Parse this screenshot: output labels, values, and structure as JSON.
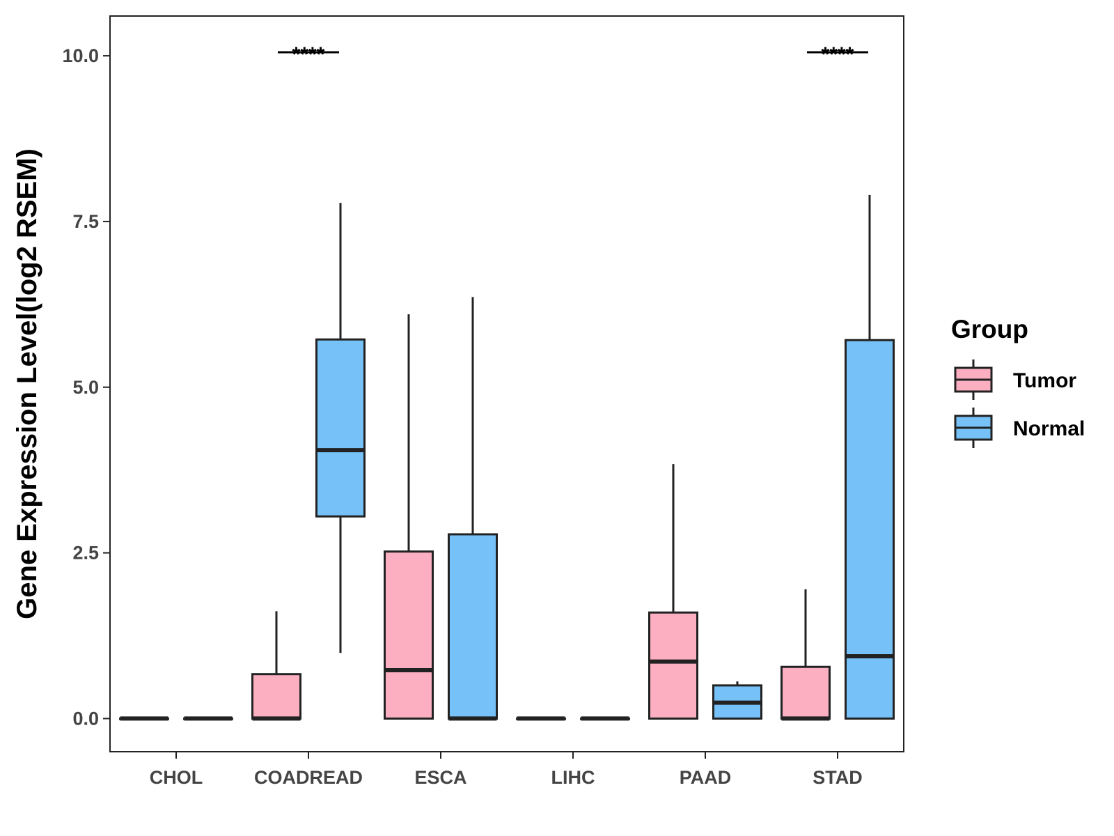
{
  "chart_data": {
    "type": "boxplot",
    "title": "",
    "xlabel": "",
    "ylabel": "Gene Expression Level(log2 RSEM)",
    "ylim": [
      -0.5,
      10.6
    ],
    "yticks": [
      0.0,
      2.5,
      5.0,
      7.5,
      10.0
    ],
    "ytick_labels": [
      "0.0",
      "2.5",
      "5.0",
      "7.5",
      "10.0"
    ],
    "categories": [
      "CHOL",
      "COADREAD",
      "ESCA",
      "LIHC",
      "PAAD",
      "STAD"
    ],
    "legend": {
      "title": "Group",
      "position": "right",
      "entries": [
        {
          "name": "Tumor",
          "color": "#FBAFC0"
        },
        {
          "name": "Normal",
          "color": "#76C1F7"
        }
      ]
    },
    "series": [
      {
        "name": "Tumor",
        "color": "#FBAFC0",
        "boxes": [
          {
            "category": "CHOL",
            "min": 0.0,
            "q1": 0.0,
            "median": 0.0,
            "q3": 0.0,
            "max": 0.0
          },
          {
            "category": "COADREAD",
            "min": 0.0,
            "q1": 0.0,
            "median": 0.0,
            "q3": 0.67,
            "max": 1.62
          },
          {
            "category": "ESCA",
            "min": 0.0,
            "q1": 0.0,
            "median": 0.73,
            "q3": 2.52,
            "max": 6.1
          },
          {
            "category": "LIHC",
            "min": 0.0,
            "q1": 0.0,
            "median": 0.0,
            "q3": 0.0,
            "max": 0.0
          },
          {
            "category": "PAAD",
            "min": 0.0,
            "q1": 0.0,
            "median": 0.86,
            "q3": 1.6,
            "max": 3.84
          },
          {
            "category": "STAD",
            "min": 0.0,
            "q1": 0.0,
            "median": 0.0,
            "q3": 0.78,
            "max": 1.95
          }
        ]
      },
      {
        "name": "Normal",
        "color": "#76C1F7",
        "boxes": [
          {
            "category": "CHOL",
            "min": 0.0,
            "q1": 0.0,
            "median": 0.0,
            "q3": 0.0,
            "max": 0.0
          },
          {
            "category": "COADREAD",
            "min": 0.99,
            "q1": 3.05,
            "median": 4.05,
            "q3": 5.72,
            "max": 7.78
          },
          {
            "category": "ESCA",
            "min": 0.0,
            "q1": 0.0,
            "median": 0.0,
            "q3": 2.78,
            "max": 6.36
          },
          {
            "category": "LIHC",
            "min": 0.0,
            "q1": 0.0,
            "median": 0.0,
            "q3": 0.0,
            "max": 0.0
          },
          {
            "category": "PAAD",
            "min": 0.0,
            "q1": 0.0,
            "median": 0.24,
            "q3": 0.5,
            "max": 0.56
          },
          {
            "category": "STAD",
            "min": 0.0,
            "q1": 0.0,
            "median": 0.94,
            "q3": 5.71,
            "max": 7.9
          }
        ]
      }
    ],
    "annotations": [
      {
        "category": "COADREAD",
        "label": "****"
      },
      {
        "category": "STAD",
        "label": "****"
      }
    ]
  }
}
